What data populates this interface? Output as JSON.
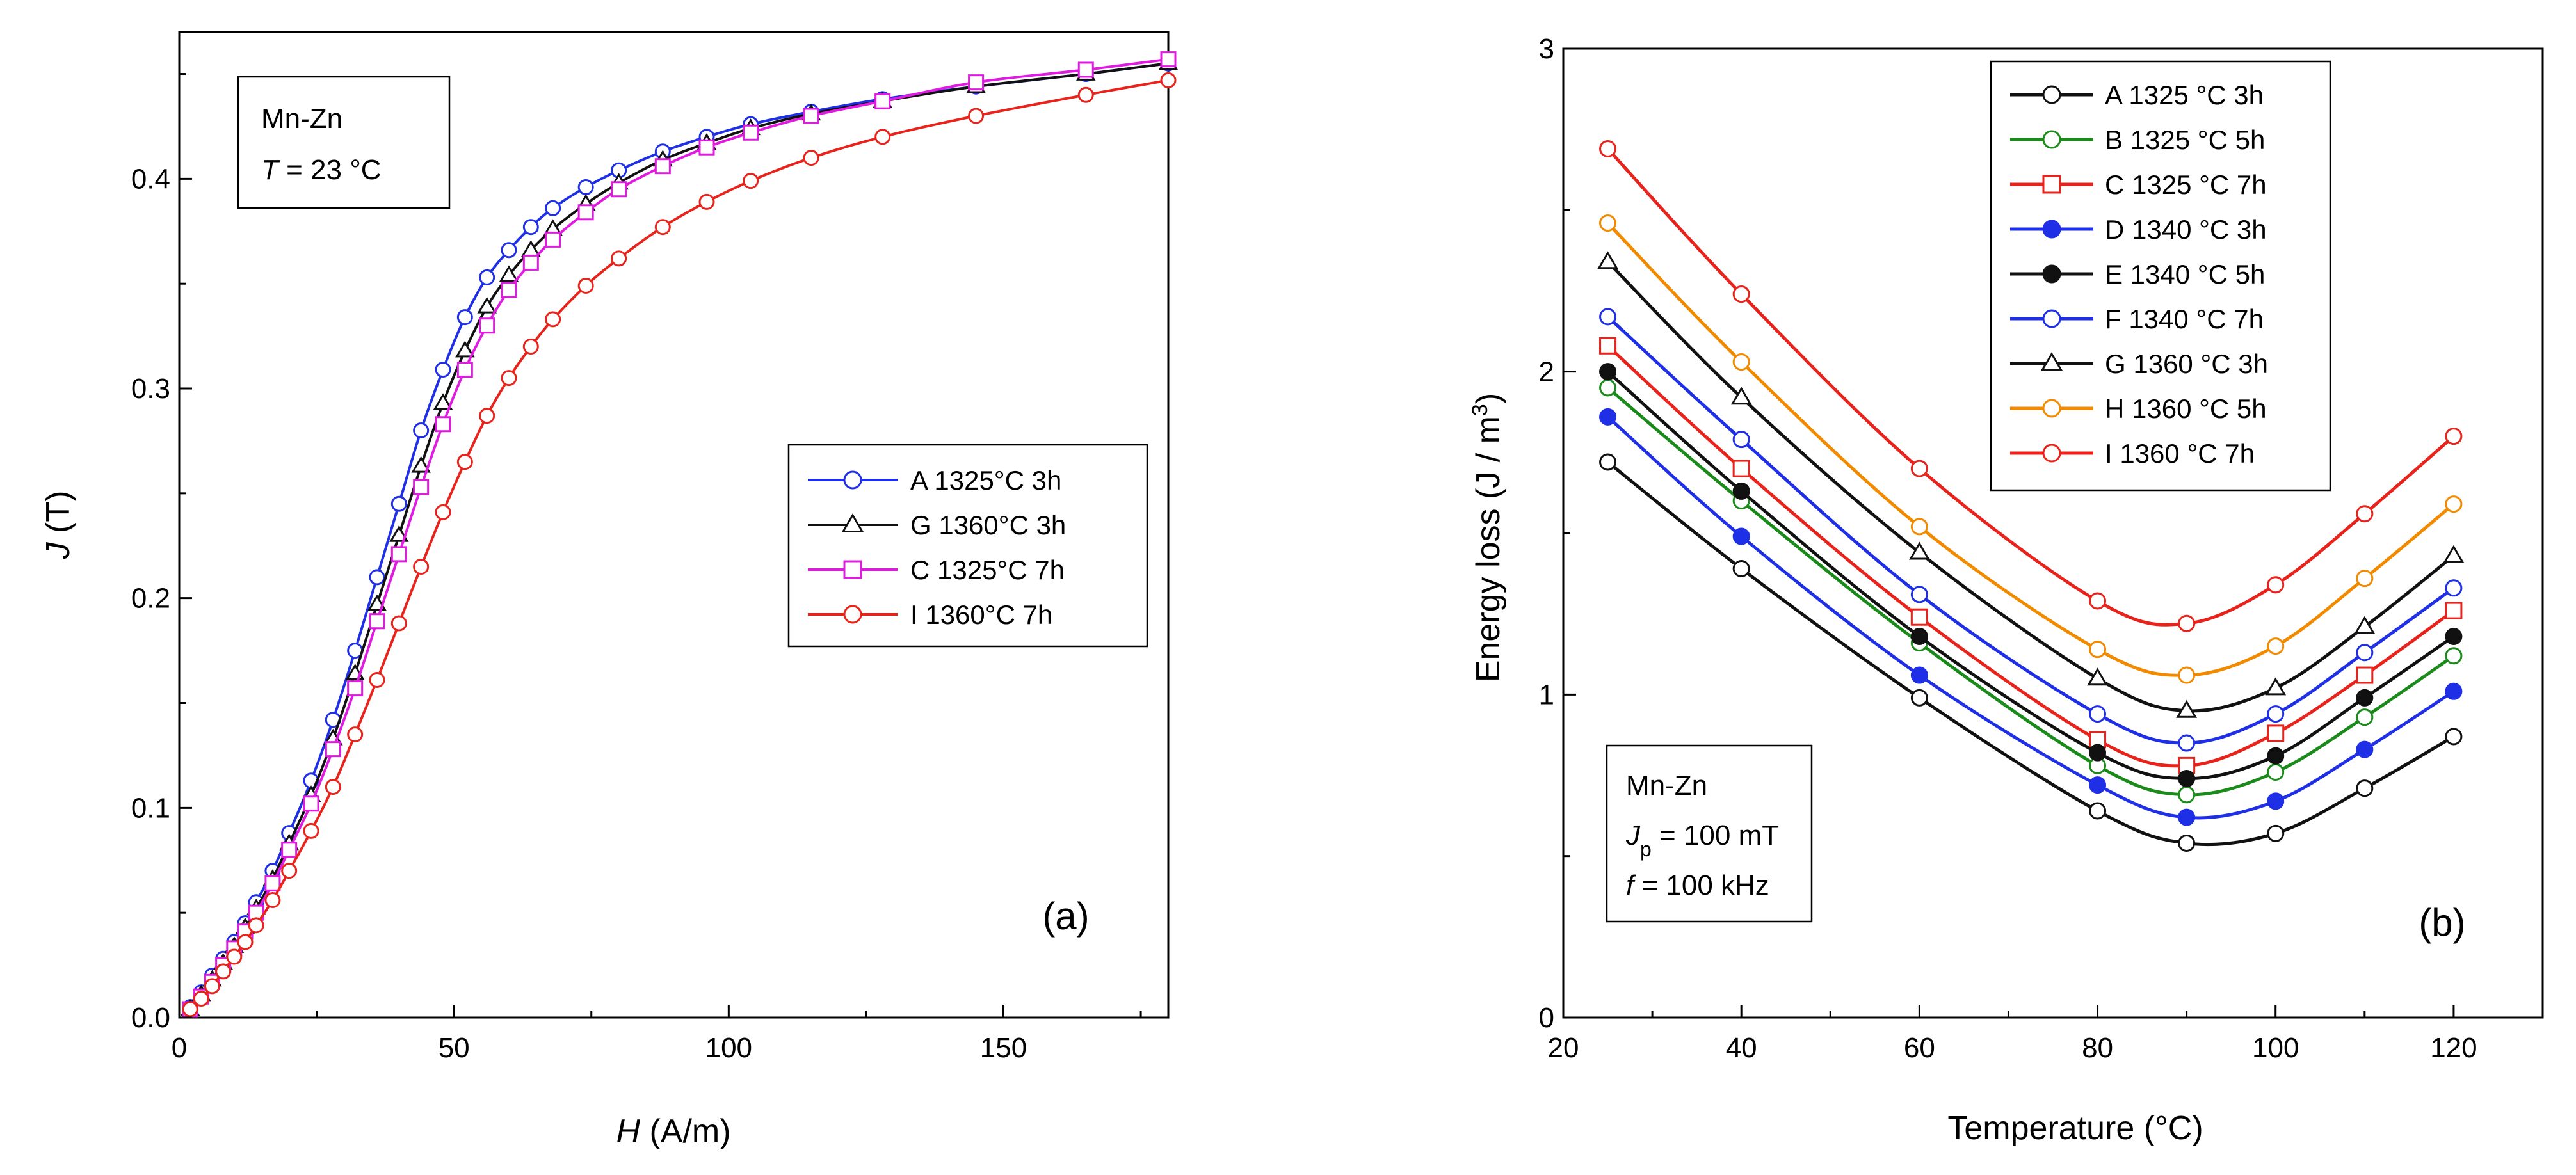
{
  "chart_data": [
    {
      "type": "line",
      "panel_label": "(a)",
      "xlabel": {
        "italic": "H",
        "rest": " (A/m)"
      },
      "ylabel": {
        "italic": "J",
        "rest": " (T)"
      },
      "xlim": [
        0,
        180
      ],
      "ylim": [
        0,
        0.47
      ],
      "xticks": [
        0,
        50,
        100,
        150
      ],
      "xtick_labels": [
        "0",
        "50",
        "100",
        "150"
      ],
      "yticks": [
        0,
        0.1,
        0.2,
        0.3,
        0.4
      ],
      "ytick_labels": [
        "0.0",
        "0.1",
        "0.2",
        "0.3",
        "0.4"
      ],
      "annotation": {
        "line1": "Mn-Zn",
        "line2_italic": "T",
        "line2_rest": " = 23 °C"
      },
      "legend_position": "center-right",
      "series": [
        {
          "name": "A 1325°C 3h",
          "color": "#1f2fe6",
          "marker": "circle",
          "x": [
            2,
            4,
            6,
            8,
            10,
            12,
            14,
            17,
            20,
            24,
            28,
            32,
            36,
            40,
            44,
            48,
            52,
            56,
            60,
            64,
            68,
            74,
            80,
            88,
            96,
            104,
            115,
            128,
            145,
            165,
            180
          ],
          "y": [
            0.005,
            0.012,
            0.02,
            0.028,
            0.036,
            0.045,
            0.055,
            0.07,
            0.088,
            0.113,
            0.142,
            0.175,
            0.21,
            0.245,
            0.28,
            0.309,
            0.334,
            0.353,
            0.366,
            0.377,
            0.386,
            0.396,
            0.404,
            0.413,
            0.42,
            0.426,
            0.432,
            0.438,
            0.444,
            0.45,
            0.455
          ]
        },
        {
          "name": "G 1360°C 3h",
          "color": "#111111",
          "marker": "triangle",
          "x": [
            2,
            4,
            6,
            8,
            10,
            12,
            14,
            17,
            20,
            24,
            28,
            32,
            36,
            40,
            44,
            48,
            52,
            56,
            60,
            64,
            68,
            74,
            80,
            88,
            96,
            104,
            115,
            128,
            145,
            165,
            180
          ],
          "y": [
            0.004,
            0.011,
            0.018,
            0.026,
            0.034,
            0.043,
            0.052,
            0.066,
            0.083,
            0.106,
            0.133,
            0.164,
            0.197,
            0.23,
            0.263,
            0.293,
            0.318,
            0.339,
            0.354,
            0.366,
            0.376,
            0.388,
            0.398,
            0.409,
            0.417,
            0.424,
            0.431,
            0.437,
            0.444,
            0.45,
            0.455
          ]
        },
        {
          "name": "C 1325°C 7h",
          "color": "#e01be0",
          "marker": "square",
          "x": [
            2,
            4,
            6,
            8,
            10,
            12,
            14,
            17,
            20,
            24,
            28,
            32,
            36,
            40,
            44,
            48,
            52,
            56,
            60,
            64,
            68,
            74,
            80,
            88,
            96,
            104,
            115,
            128,
            145,
            165,
            180
          ],
          "y": [
            0.004,
            0.01,
            0.017,
            0.025,
            0.033,
            0.041,
            0.05,
            0.064,
            0.08,
            0.102,
            0.128,
            0.157,
            0.189,
            0.221,
            0.253,
            0.283,
            0.309,
            0.33,
            0.347,
            0.36,
            0.371,
            0.384,
            0.395,
            0.406,
            0.415,
            0.422,
            0.43,
            0.437,
            0.446,
            0.452,
            0.457
          ]
        },
        {
          "name": "I  1360°C 7h",
          "color": "#e8231c",
          "marker": "circle",
          "x": [
            2,
            4,
            6,
            8,
            10,
            12,
            14,
            17,
            20,
            24,
            28,
            32,
            36,
            40,
            44,
            48,
            52,
            56,
            60,
            64,
            68,
            74,
            80,
            88,
            96,
            104,
            115,
            128,
            145,
            165,
            180
          ],
          "y": [
            0.004,
            0.009,
            0.015,
            0.022,
            0.029,
            0.036,
            0.044,
            0.056,
            0.07,
            0.089,
            0.11,
            0.135,
            0.161,
            0.188,
            0.215,
            0.241,
            0.265,
            0.287,
            0.305,
            0.32,
            0.333,
            0.349,
            0.362,
            0.377,
            0.389,
            0.399,
            0.41,
            0.42,
            0.43,
            0.44,
            0.447
          ]
        }
      ]
    },
    {
      "type": "line",
      "panel_label": "(b)",
      "xlabel": "Temperature (°C)",
      "ylabel": "Energy loss (J / m",
      "ylabel_sup": "3",
      "ylabel_end": ")",
      "xlim": [
        20,
        130
      ],
      "ylim": [
        0,
        3
      ],
      "xticks": [
        20,
        40,
        60,
        80,
        100,
        120
      ],
      "xtick_labels": [
        "20",
        "40",
        "60",
        "80",
        "100",
        "120"
      ],
      "yticks": [
        0,
        1,
        2,
        3
      ],
      "ytick_labels": [
        "0",
        "1",
        "2",
        "3"
      ],
      "x": [
        25,
        40,
        60,
        80,
        90,
        100,
        110,
        120
      ],
      "annotation": {
        "line1": "Mn-Zn",
        "line2_italic": "J",
        "line2_sub": "p",
        "line2_rest": " = 100 mT",
        "line3_italic": "f",
        "line3_rest": " = 100 kHz"
      },
      "legend_position": "top-center",
      "series": [
        {
          "name": "A 1325 °C 3h",
          "color": "#111111",
          "marker": "circle-open",
          "values": [
            1.72,
            1.39,
            0.99,
            0.64,
            0.54,
            0.57,
            0.71,
            0.87
          ]
        },
        {
          "name": "B 1325 °C 5h",
          "color": "#1a8a1a",
          "marker": "circle-open",
          "values": [
            1.95,
            1.6,
            1.16,
            0.78,
            0.69,
            0.76,
            0.93,
            1.12
          ]
        },
        {
          "name": "C 1325 °C 7h",
          "color": "#e8231c",
          "marker": "square-open",
          "values": [
            2.08,
            1.7,
            1.24,
            0.86,
            0.78,
            0.88,
            1.06,
            1.26
          ]
        },
        {
          "name": "D 1340 °C 3h",
          "color": "#1f2fe6",
          "marker": "circle-filled",
          "values": [
            1.86,
            1.49,
            1.06,
            0.72,
            0.62,
            0.67,
            0.83,
            1.01
          ]
        },
        {
          "name": "E 1340 °C 5h",
          "color": "#111111",
          "marker": "circle-filled",
          "values": [
            2.0,
            1.63,
            1.18,
            0.82,
            0.74,
            0.81,
            0.99,
            1.18
          ]
        },
        {
          "name": "F 1340 °C 7h",
          "color": "#1f2fe6",
          "marker": "circle-open",
          "values": [
            2.17,
            1.79,
            1.31,
            0.94,
            0.85,
            0.94,
            1.13,
            1.33
          ]
        },
        {
          "name": "G 1360 °C 3h",
          "color": "#111111",
          "marker": "triangle-open",
          "values": [
            2.34,
            1.92,
            1.44,
            1.05,
            0.95,
            1.02,
            1.21,
            1.43
          ]
        },
        {
          "name": "H 1360 °C 5h",
          "color": "#f28a00",
          "marker": "circle-open",
          "values": [
            2.46,
            2.03,
            1.52,
            1.14,
            1.06,
            1.15,
            1.36,
            1.59
          ]
        },
        {
          "name": "I 1360 °C 7h",
          "color": "#e8231c",
          "marker": "circle-open",
          "values": [
            2.69,
            2.24,
            1.7,
            1.29,
            1.22,
            1.34,
            1.56,
            1.8
          ]
        }
      ]
    }
  ]
}
